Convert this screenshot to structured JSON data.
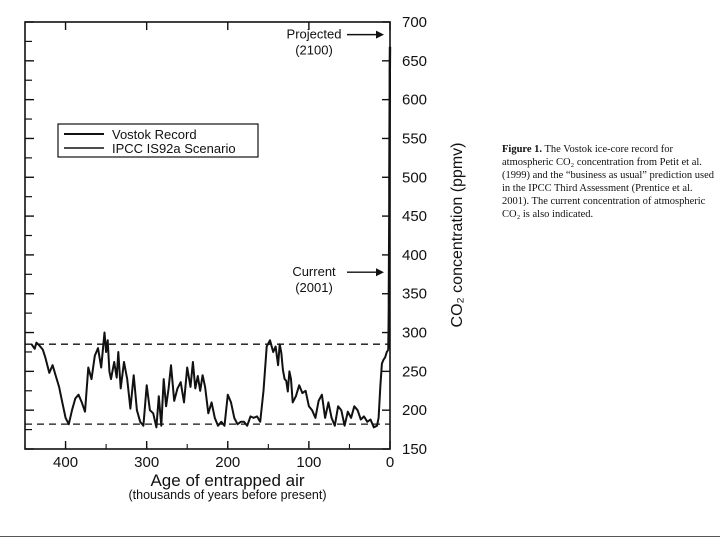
{
  "chart_data": {
    "type": "line",
    "xlabel": "Age of entrapped air",
    "xlabel_sub": "(thousands of years before present)",
    "ylabel": "CO₂ concentration (ppmv)",
    "xlim": [
      450,
      0
    ],
    "ylim": [
      150,
      700
    ],
    "x_ticks": [
      400,
      300,
      200,
      100,
      0
    ],
    "y_ticks": [
      150,
      200,
      250,
      300,
      350,
      400,
      450,
      500,
      550,
      600,
      650,
      700
    ],
    "reference_lines": [
      285,
      182
    ],
    "legend": {
      "position": "top-left",
      "entries": [
        "Vostok Record",
        "IPCC IS92a Scenario"
      ]
    },
    "annotations": [
      {
        "text": "Projected",
        "text2": "(2100)",
        "x": 0,
        "y": 676
      },
      {
        "text": "Current",
        "text2": "(2001)",
        "x": 0,
        "y": 370
      }
    ],
    "series": [
      {
        "name": "Vostok Record",
        "x": [
          442,
          438,
          436,
          432,
          428,
          425,
          420,
          416,
          412,
          408,
          404,
          400,
          396,
          392,
          388,
          384,
          380,
          376,
          372,
          368,
          364,
          360,
          356,
          352,
          350,
          348,
          346,
          344,
          340,
          337,
          335,
          332,
          328,
          324,
          320,
          316,
          312,
          308,
          304,
          300,
          296,
          292,
          288,
          285,
          282,
          279,
          276,
          273,
          270,
          266,
          262,
          258,
          254,
          250,
          246,
          243,
          240,
          237,
          234,
          231,
          228,
          224,
          220,
          216,
          212,
          208,
          204,
          200,
          196,
          192,
          188,
          184,
          180,
          176,
          172,
          168,
          164,
          160,
          156,
          152,
          148,
          144,
          141,
          138,
          136,
          134,
          132,
          130,
          128,
          126,
          124,
          122,
          120,
          116,
          112,
          108,
          104,
          100,
          96,
          92,
          88,
          84,
          80,
          76,
          72,
          68,
          64,
          60,
          56,
          52,
          48,
          44,
          40,
          36,
          32,
          28,
          24,
          20,
          16,
          14,
          12,
          10,
          8,
          6,
          4,
          2
        ],
        "values": [
          285,
          279,
          287,
          283,
          278,
          268,
          248,
          258,
          244,
          230,
          210,
          190,
          182,
          200,
          215,
          220,
          210,
          198,
          255,
          240,
          270,
          280,
          255,
          300,
          275,
          290,
          250,
          240,
          262,
          242,
          275,
          228,
          262,
          240,
          202,
          245,
          200,
          185,
          180,
          232,
          200,
          196,
          178,
          218,
          180,
          240,
          205,
          228,
          258,
          212,
          228,
          236,
          210,
          255,
          230,
          262,
          228,
          244,
          225,
          245,
          230,
          196,
          210,
          190,
          180,
          185,
          180,
          220,
          210,
          190,
          182,
          185,
          185,
          180,
          192,
          190,
          192,
          185,
          225,
          282,
          290,
          275,
          282,
          258,
          285,
          274,
          252,
          240,
          238,
          224,
          250,
          240,
          210,
          218,
          232,
          222,
          225,
          205,
          200,
          190,
          212,
          220,
          190,
          210,
          190,
          180,
          205,
          200,
          180,
          198,
          190,
          205,
          200,
          188,
          192,
          185,
          188,
          178,
          180,
          190,
          230,
          260,
          265,
          268,
          275,
          278
        ]
      },
      {
        "name": "IPCC IS92a Scenario",
        "x": [
          2,
          1.9,
          1.8,
          1.7,
          1.6,
          1.5,
          1.4,
          1.3,
          1.2,
          1.1,
          1.0,
          0.9,
          0.8,
          0.7,
          0.6,
          0.5,
          0.4,
          0.3,
          0.2,
          0.1,
          0
        ],
        "values": [
          278,
          280,
          285,
          295,
          305,
          318,
          333,
          350,
          370,
          392,
          415,
          440,
          468,
          498,
          528,
          558,
          588,
          615,
          638,
          655,
          668
        ]
      }
    ]
  },
  "caption": {
    "label": "Figure 1.",
    "text": " The Vostok ice-core record for atmospheric CO₂ concentration from Petit et al. (1999) and the “business as usual” prediction used in the IPCC Third Assessment (Prentice et al. 2001). The current concentration of atmospheric CO₂ is also indicated."
  }
}
